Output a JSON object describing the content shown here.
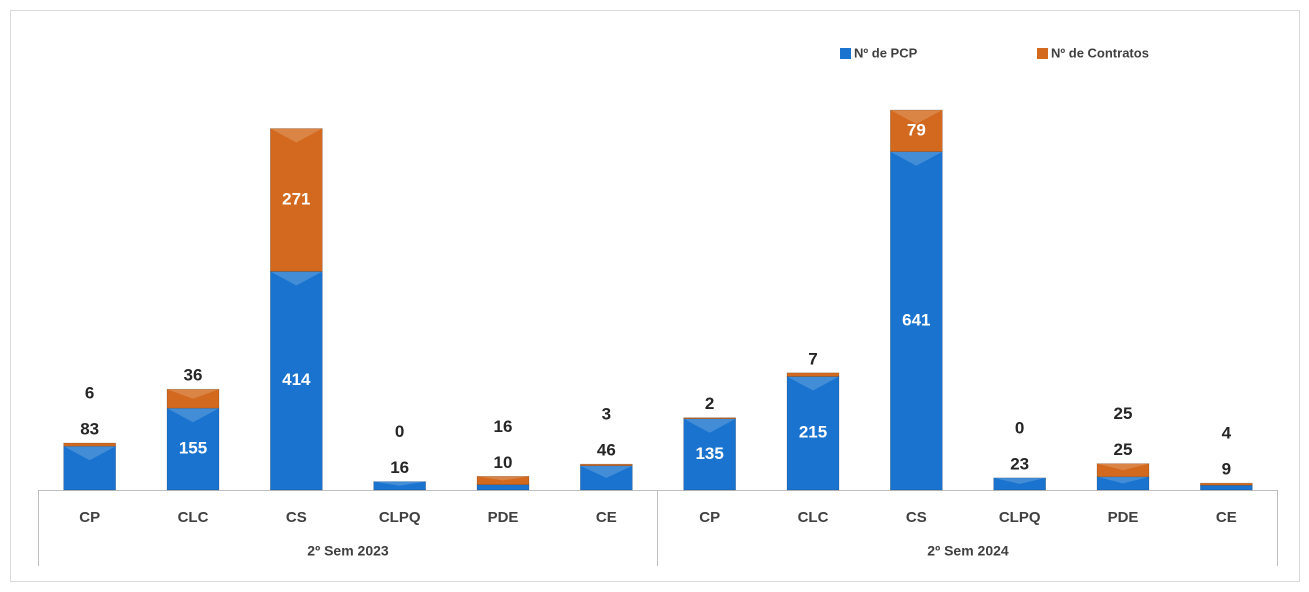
{
  "chart_data": {
    "type": "bar",
    "stacked": true,
    "groups": [
      "2º Sem 2023",
      "2º Sem 2024"
    ],
    "categories": [
      [
        "CP",
        "CLC",
        "CS",
        "CLPQ",
        "PDE",
        "CE"
      ],
      [
        "CP",
        "CLC",
        "CS",
        "CLPQ",
        "PDE",
        "CE"
      ]
    ],
    "series": [
      {
        "name": "Nº de PCP",
        "color": "#1a74cf",
        "values": [
          [
            83,
            155,
            414,
            16,
            10,
            46
          ],
          [
            135,
            215,
            641,
            23,
            25,
            9
          ]
        ]
      },
      {
        "name": "Nº de Contratos",
        "color": "#d2691e",
        "values": [
          [
            6,
            36,
            271,
            0,
            16,
            3
          ],
          [
            2,
            7,
            79,
            0,
            25,
            4
          ]
        ]
      }
    ]
  }
}
